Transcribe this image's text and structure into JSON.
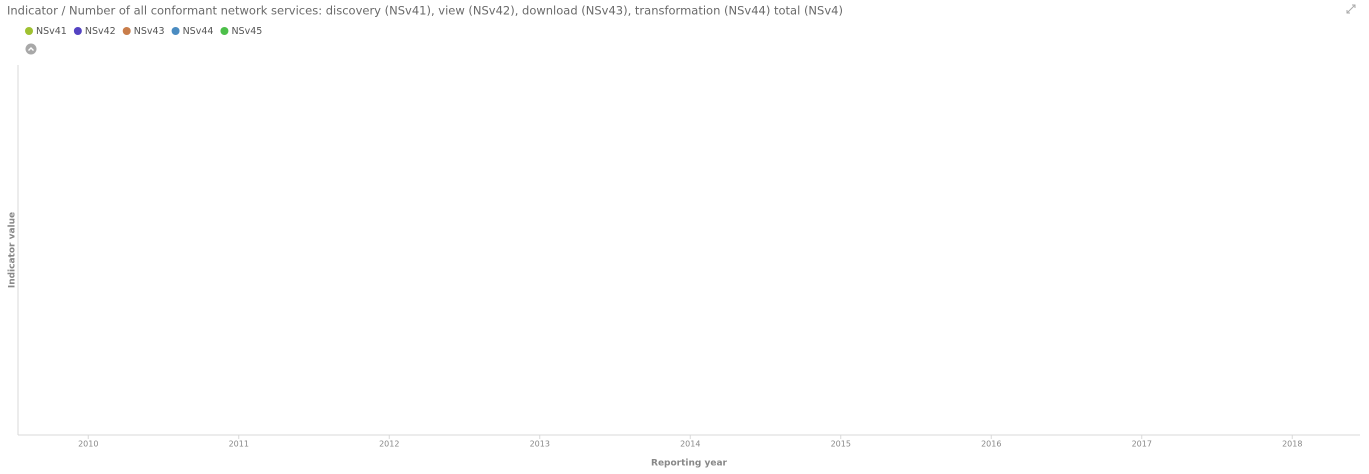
{
  "chart_data": {
    "type": "line",
    "title": "Indicator / Number of all conformant network services: discovery (NSv41), view (NSv42), download (NSv43), transformation (NSv44) total (NSv4)",
    "x_label": "Reporting year",
    "y_label": "Indicator value",
    "categories": [
      "2010",
      "2011",
      "2012",
      "2013",
      "2014",
      "2015",
      "2016",
      "2017",
      "2018"
    ],
    "series": [
      {
        "name": "NSv41",
        "color": "#9fc131",
        "values": [
          null,
          null,
          null,
          null,
          null,
          null,
          null,
          null,
          null
        ]
      },
      {
        "name": "NSv42",
        "color": "#5443c2",
        "values": [
          null,
          null,
          null,
          null,
          null,
          null,
          null,
          null,
          null
        ]
      },
      {
        "name": "NSv43",
        "color": "#c97d4a",
        "values": [
          null,
          null,
          null,
          null,
          null,
          null,
          null,
          null,
          null
        ]
      },
      {
        "name": "NSv44",
        "color": "#4b8cc1",
        "values": [
          null,
          null,
          null,
          null,
          null,
          null,
          null,
          null,
          null
        ]
      },
      {
        "name": "NSv45",
        "color": "#4dbf4a",
        "values": [
          null,
          null,
          null,
          null,
          null,
          null,
          null,
          null,
          null
        ]
      }
    ]
  }
}
